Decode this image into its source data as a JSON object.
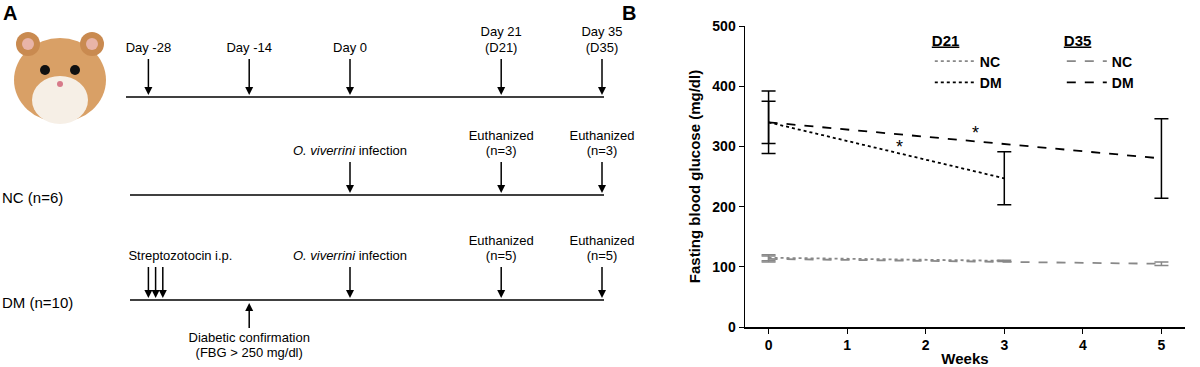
{
  "diagram": {
    "label": "A",
    "timeline": [
      {
        "day": -28,
        "text": [
          "Day -28"
        ]
      },
      {
        "day": -14,
        "text": [
          "Day -14"
        ]
      },
      {
        "day": 0,
        "text": [
          "Day 0"
        ]
      },
      {
        "day": 21,
        "text": [
          "Day 21",
          "(D21)"
        ]
      },
      {
        "day": 35,
        "text": [
          "Day 35",
          "(D35)"
        ]
      }
    ],
    "groups": [
      {
        "label": "NC (n=6)",
        "events": [
          {
            "days": [
              0
            ],
            "text": [
              [
                {
                  "text": "O. viverrini",
                  "italic": true
                },
                {
                  "text": " infection"
                }
              ]
            ]
          },
          {
            "days": [
              21
            ],
            "text": [
              "Euthanized",
              "(n=3)"
            ]
          },
          {
            "days": [
              35
            ],
            "text": [
              "Euthanized",
              "(n=3)"
            ]
          }
        ]
      },
      {
        "label": "DM (n=10)",
        "events": [
          {
            "days": [
              -28,
              -27,
              -26
            ],
            "text": [
              "Streptozotocin i.p."
            ]
          },
          {
            "days": [
              -14
            ],
            "text": [
              "Diabetic confirmation",
              "(FBG > 250 mg/dl)"
            ],
            "position": "below"
          },
          {
            "days": [
              0
            ],
            "text": [
              [
                {
                  "text": "O. viverrini",
                  "italic": true
                },
                {
                  "text": " infection"
                }
              ]
            ]
          },
          {
            "days": [
              21
            ],
            "text": [
              "Euthanized",
              "(n=5)"
            ]
          },
          {
            "days": [
              35
            ],
            "text": [
              "Euthanized",
              "(n=5)"
            ]
          }
        ]
      }
    ]
  },
  "chart_data": {
    "type": "line",
    "label": "B",
    "x_label": "Weeks",
    "y_label": "Fasting blood glucose (mg/dl)",
    "xlim": [
      -0.3,
      5.3
    ],
    "xticks": [
      0,
      1,
      2,
      3,
      4,
      5
    ],
    "ylim": [
      0,
      500
    ],
    "yticks": [
      0,
      100,
      200,
      300,
      400,
      500
    ],
    "grid": false,
    "series": [
      {
        "name": "NC",
        "legend_group": "D21",
        "color": "#888888",
        "line_style": "dot",
        "x": [
          0,
          3
        ],
        "values": [
          115,
          110
        ],
        "error": [
          5,
          1
        ]
      },
      {
        "name": "DM",
        "legend_group": "D21",
        "color": "#000000",
        "line_style": "dot",
        "x": [
          0,
          3
        ],
        "values": [
          340,
          247
        ],
        "error": [
          35,
          44
        ]
      },
      {
        "name": "NC",
        "legend_group": "D35",
        "color": "#888888",
        "line_style": "dash",
        "x": [
          0,
          5
        ],
        "values": [
          113,
          105
        ],
        "error": [
          5,
          3
        ]
      },
      {
        "name": "DM",
        "legend_group": "D35",
        "color": "#000000",
        "line_style": "dash",
        "x": [
          0,
          5
        ],
        "values": [
          340,
          280
        ],
        "error": [
          52,
          66
        ]
      }
    ],
    "annotations": [
      {
        "text": "*",
        "x": 1.67,
        "y": 299
      },
      {
        "text": "*",
        "x": 2.63,
        "y": 322
      }
    ]
  }
}
